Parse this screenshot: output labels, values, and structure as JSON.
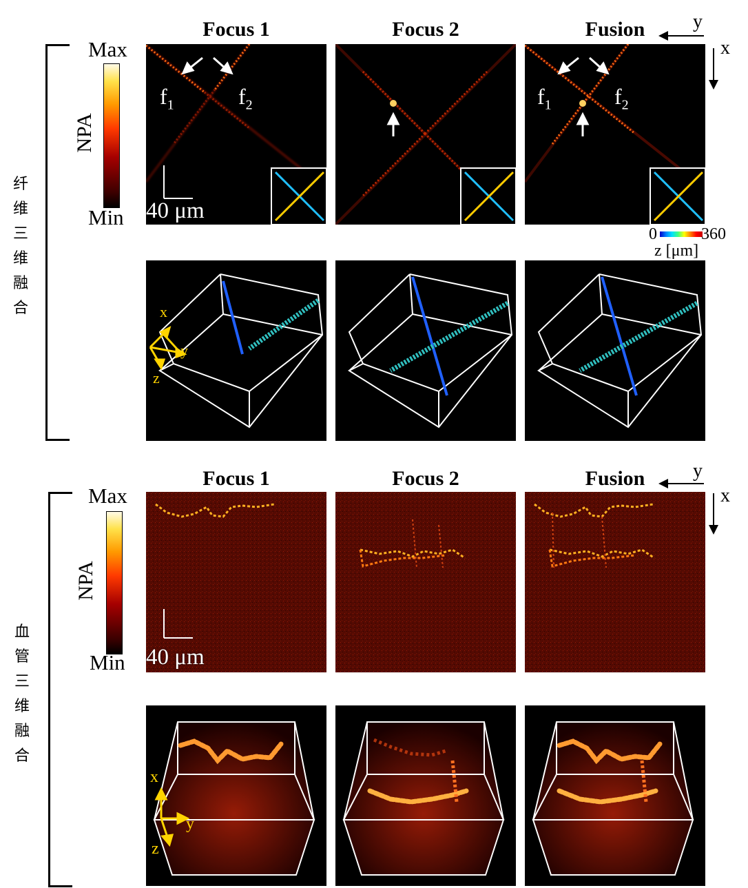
{
  "sections": [
    {
      "id": "fiber",
      "side_label": "纤维三维融合",
      "columns": [
        "Focus 1",
        "Focus 2",
        "Fusion"
      ],
      "colorbar": {
        "max": "Max",
        "min": "Min",
        "label": "NPA"
      },
      "scale_bar": "40 μm",
      "axes2d": {
        "y": "y",
        "x": "x"
      },
      "axes3d": {
        "x": "x",
        "y": "y",
        "z": "z"
      },
      "focus_labels": {
        "f1": "f",
        "f1_sub": "1",
        "f2": "f",
        "f2_sub": "2"
      },
      "depth_bar": {
        "min": "0",
        "max": "360",
        "label": "z [μm]"
      }
    },
    {
      "id": "vessel",
      "side_label": "血管三维融合",
      "columns": [
        "Focus 1",
        "Focus 2",
        "Fusion"
      ],
      "colorbar": {
        "max": "Max",
        "min": "Min",
        "label": "NPA"
      },
      "scale_bar": "40 μm",
      "axes2d": {
        "y": "y",
        "x": "x"
      },
      "axes3d": {
        "x": "x",
        "y": "y",
        "z": "z"
      }
    }
  ],
  "colors": {
    "hot_low": "#000000",
    "hot_mid": "#c80000",
    "hot_high": "#ffe84a",
    "annotation_yellow": "#ffd400",
    "box_white": "#ffffff"
  }
}
